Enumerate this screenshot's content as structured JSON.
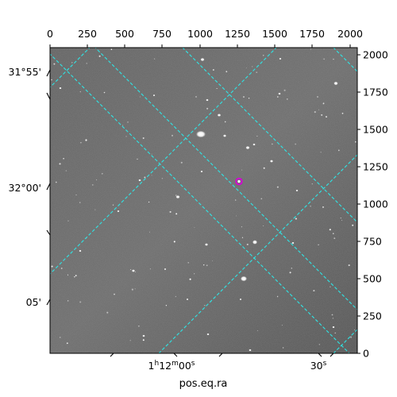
{
  "x_axis_label": "pos.eq.ra",
  "pixel_x_ticks": [
    "0",
    "250",
    "500",
    "750",
    "1000",
    "1250",
    "1500",
    "1750",
    "2000"
  ],
  "pixel_y_ticks": [
    "0",
    "250",
    "500",
    "750",
    "1000",
    "1250",
    "1500",
    "1750",
    "2000"
  ],
  "dec_ticks": [
    "31°55'",
    "32°00'",
    "05'"
  ],
  "ra_ticks": [
    {
      "main": "1",
      "sup1": "h",
      "mid": "12",
      "sup2": "m",
      "mid2": "00",
      "sup3": "s"
    },
    {
      "main": "30",
      "sup1": "s"
    }
  ],
  "colors": {
    "grid": "#2ee6e6",
    "marker": "#d600d6",
    "sky": "#6e6e6e"
  },
  "pixel_extent": {
    "xmax": 2048,
    "ymax": 2048
  },
  "marked_source_pixel": {
    "x": 1275,
    "y": 1155
  }
}
